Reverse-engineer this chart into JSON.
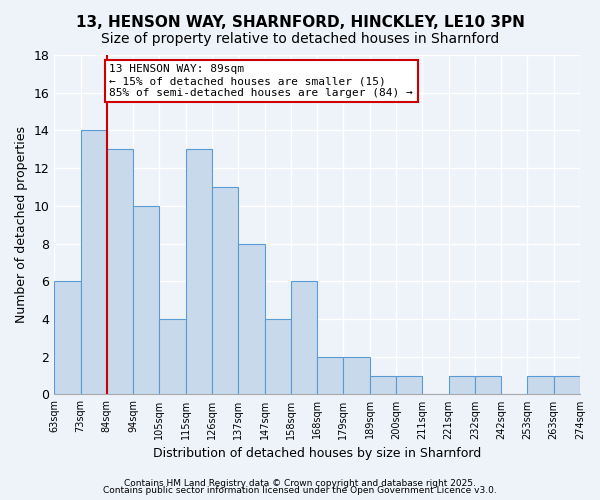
{
  "title1": "13, HENSON WAY, SHARNFORD, HINCKLEY, LE10 3PN",
  "title2": "Size of property relative to detached houses in Sharnford",
  "xlabel": "Distribution of detached houses by size in Sharnford",
  "ylabel": "Number of detached properties",
  "bar_values": [
    6,
    14,
    13,
    10,
    4,
    13,
    11,
    8,
    4,
    6,
    2,
    2,
    1,
    1,
    0,
    1,
    1,
    0,
    1,
    1
  ],
  "bin_labels": [
    "63sqm",
    "73sqm",
    "84sqm",
    "94sqm",
    "105sqm",
    "115sqm",
    "126sqm",
    "137sqm",
    "147sqm",
    "158sqm",
    "168sqm",
    "179sqm",
    "189sqm",
    "200sqm",
    "211sqm",
    "221sqm",
    "232sqm",
    "242sqm",
    "253sqm",
    "263sqm",
    "274sqm"
  ],
  "bar_color": "#c9d9ec",
  "bar_edge_color": "#5b9bd5",
  "annotation_text": "13 HENSON WAY: 89sqm\n← 15% of detached houses are smaller (15)\n85% of semi-detached houses are larger (84) →",
  "annotation_box_color": "#ffffff",
  "annotation_box_edge": "#cc0000",
  "red_line_color": "#cc0000",
  "ylim": [
    0,
    18
  ],
  "yticks": [
    0,
    2,
    4,
    6,
    8,
    10,
    12,
    14,
    16,
    18
  ],
  "footer1": "Contains HM Land Registry data © Crown copyright and database right 2025.",
  "footer2": "Contains public sector information licensed under the Open Government Licence v3.0.",
  "bg_color": "#eef3f9",
  "grid_color": "#ffffff",
  "title_fontsize": 11,
  "subtitle_fontsize": 10
}
